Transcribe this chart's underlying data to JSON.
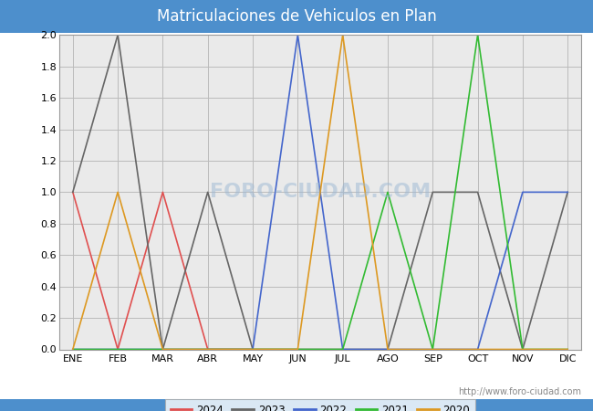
{
  "title": "Matriculaciones de Vehiculos en Plan",
  "title_bg_color": "#4d8fcc",
  "title_text_color": "white",
  "months": [
    "ENE",
    "FEB",
    "MAR",
    "ABR",
    "MAY",
    "JUN",
    "JUL",
    "AGO",
    "SEP",
    "OCT",
    "NOV",
    "DIC"
  ],
  "series": {
    "2024": {
      "color": "#e05050",
      "values": [
        1,
        0,
        1,
        0,
        0,
        null,
        null,
        null,
        null,
        null,
        null,
        null
      ]
    },
    "2023": {
      "color": "#666666",
      "values": [
        1,
        2,
        0,
        1,
        0,
        0,
        0,
        0,
        1,
        1,
        0,
        1
      ]
    },
    "2022": {
      "color": "#4466cc",
      "values": [
        0,
        0,
        0,
        0,
        0,
        2,
        0,
        0,
        0,
        0,
        1,
        1
      ]
    },
    "2021": {
      "color": "#33bb33",
      "values": [
        0,
        0,
        0,
        0,
        0,
        0,
        0,
        1,
        0,
        2,
        0,
        0
      ]
    },
    "2020": {
      "color": "#dd9922",
      "values": [
        0,
        1,
        0,
        0,
        0,
        0,
        2,
        0,
        0,
        0,
        0,
        0
      ]
    }
  },
  "ylim": [
    0,
    2.0
  ],
  "yticks": [
    0.0,
    0.2,
    0.4,
    0.6,
    0.8,
    1.0,
    1.2,
    1.4,
    1.6,
    1.8,
    2.0
  ],
  "grid_color": "#bbbbbb",
  "plot_bg_color": "#eaeaea",
  "legend_order": [
    "2024",
    "2023",
    "2022",
    "2021",
    "2020"
  ],
  "watermark": "http://www.foro-ciudad.com",
  "watermark_chart": "FORO-CIUDAD.COM",
  "bottom_bar_color": "#4d8fcc",
  "fig_bg_color": "#ffffff"
}
